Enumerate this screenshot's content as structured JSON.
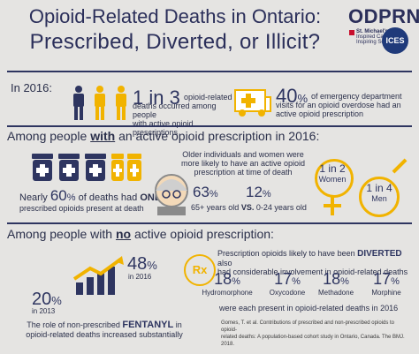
{
  "header": {
    "title_line1": "Opioid-Related Deaths in Ontario:",
    "title_line2": "Prescribed, Diverted, or Illicit?",
    "logo": "ODPRN",
    "partner1_line1": "St. Michael's",
    "partner1_line2": "Inspired Care.",
    "partner1_line3": "Inspiring Science.",
    "partner2": "ICES"
  },
  "section1": {
    "label": "In 2016:",
    "stat1_num": "1 in 3",
    "stat1_text_1": "opioid-related",
    "stat1_text_2": "deaths occurred among people",
    "stat1_text_3": "with active opioid prescriptions",
    "stat2_num": "40",
    "stat2_pct": "%",
    "stat2_text_1": "of emergency department",
    "stat2_text_2": "visits for an opioid overdose had an",
    "stat2_text_3": "active opioid prescription",
    "icons": [
      "person-navy-icon",
      "person-gold-icon",
      "person-gold-icon",
      "ambulance-icon"
    ]
  },
  "section2": {
    "heading_pre": "Among people ",
    "heading_em": "with",
    "heading_post": " an active opioid prescription in 2016:",
    "bottles_stat_pre": "Nearly ",
    "bottles_stat_num": "60",
    "bottles_stat_pct": "%",
    "bottles_stat_mid": " of deaths had ",
    "bottles_stat_em": "ONLY",
    "bottles_stat_line2": "prescribed opioids present at death",
    "older_text_1": "Older individuals and women were",
    "older_text_2": "more likely to have an active opioid",
    "older_text_3": "prescription at time of death",
    "age1_num": "63",
    "age1_pct": "%",
    "age2_num": "12",
    "age2_pct": "%",
    "age_caption_1": "65+ years old",
    "age_caption_vs": "VS.",
    "age_caption_2": "0-24 years old",
    "women_num": "1 in 2",
    "women_label": "Women",
    "men_num": "1 in 4",
    "men_label": "Men"
  },
  "section3": {
    "heading_pre": "Among people with ",
    "heading_em": "no",
    "heading_post": " active opioid prescription:",
    "stat2016_num": "48",
    "stat2016_pct": "%",
    "stat2016_year": "in 2016",
    "stat2013_num": "20",
    "stat2013_pct": "%",
    "stat2013_year": "in 2013",
    "fentanyl_pre": "The role of non-prescribed ",
    "fentanyl_em": "FENTANYL",
    "fentanyl_post": " in",
    "fentanyl_line2": "opioid-related deaths increased substantially",
    "diverted_pre": "Prescription opioids likely to have been ",
    "diverted_em": "DIVERTED",
    "diverted_post": " also",
    "diverted_line2": "had considerable involvement in opioid-related deaths",
    "rx_symbol": "Rx",
    "drugs": [
      {
        "num": "18",
        "pct": "%",
        "name": "Hydromorphone"
      },
      {
        "num": "17",
        "pct": "%",
        "name": "Oxycodone"
      },
      {
        "num": "18",
        "pct": "%",
        "name": "Methadone"
      },
      {
        "num": "17",
        "pct": "%",
        "name": "Morphine"
      }
    ],
    "drugs_caption": "were each present in opioid-related deaths in 2016",
    "citation_1": "Gomes, T. et al. Contributions of prescribed and non-prescribed opioids to opioid-",
    "citation_2": "related deaths: A population-based cohort study in Ontario, Canada. The BMJ. 2018."
  },
  "colors": {
    "navy": "#2e3560",
    "gold": "#f1b300",
    "bg": "#e5e4e2"
  }
}
